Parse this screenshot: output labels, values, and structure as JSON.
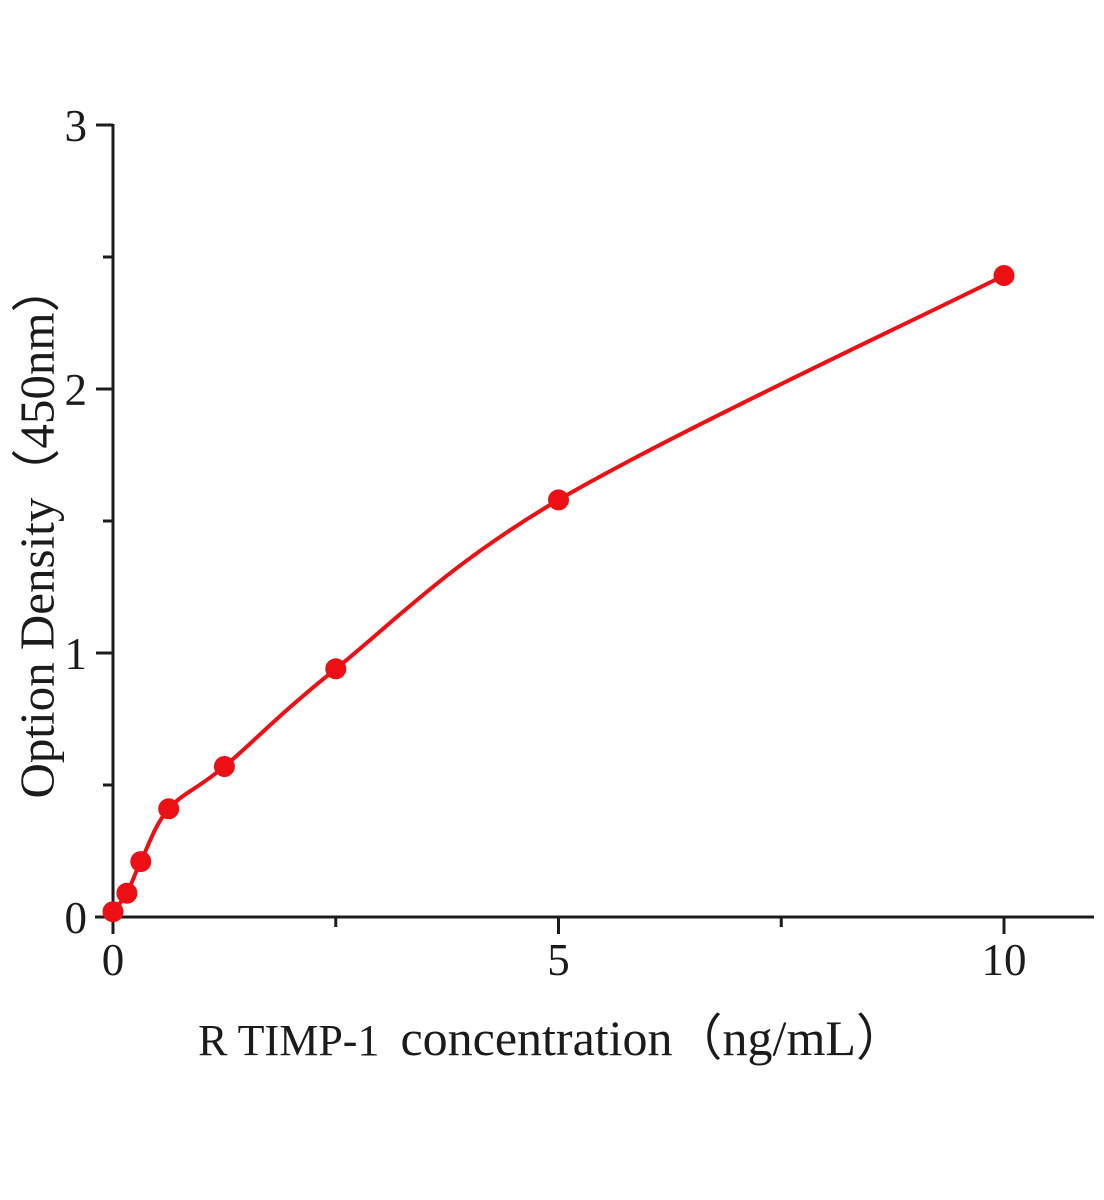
{
  "chart_data": {
    "type": "scatter-line",
    "title": "",
    "xlabel": "R TIMP-1 concentration（ng/mL）",
    "xlabel_part1": "R TIMP-1",
    "xlabel_part2": "concentration（ng/mL）",
    "ylabel": "Option Density（450nm）",
    "x": [
      0,
      0.156,
      0.3125,
      0.625,
      1.25,
      2.5,
      5,
      10
    ],
    "y": [
      0.02,
      0.09,
      0.21,
      0.41,
      0.57,
      0.94,
      1.58,
      2.43
    ],
    "xlim": [
      0,
      11
    ],
    "ylim": [
      0,
      3
    ],
    "x_major_ticks": [
      0,
      5,
      10
    ],
    "x_minor_ticks": [
      2.5,
      7.5
    ],
    "y_major_ticks": [
      0,
      1,
      2,
      3
    ],
    "y_minor_ticks": [
      0.5,
      1.5,
      2.5
    ],
    "grid": false,
    "legend": null,
    "colors": {
      "curve": "#ec1014",
      "marker": "#ec1014",
      "axis": "#1c1c1c",
      "text": "#1b1b1b"
    }
  }
}
